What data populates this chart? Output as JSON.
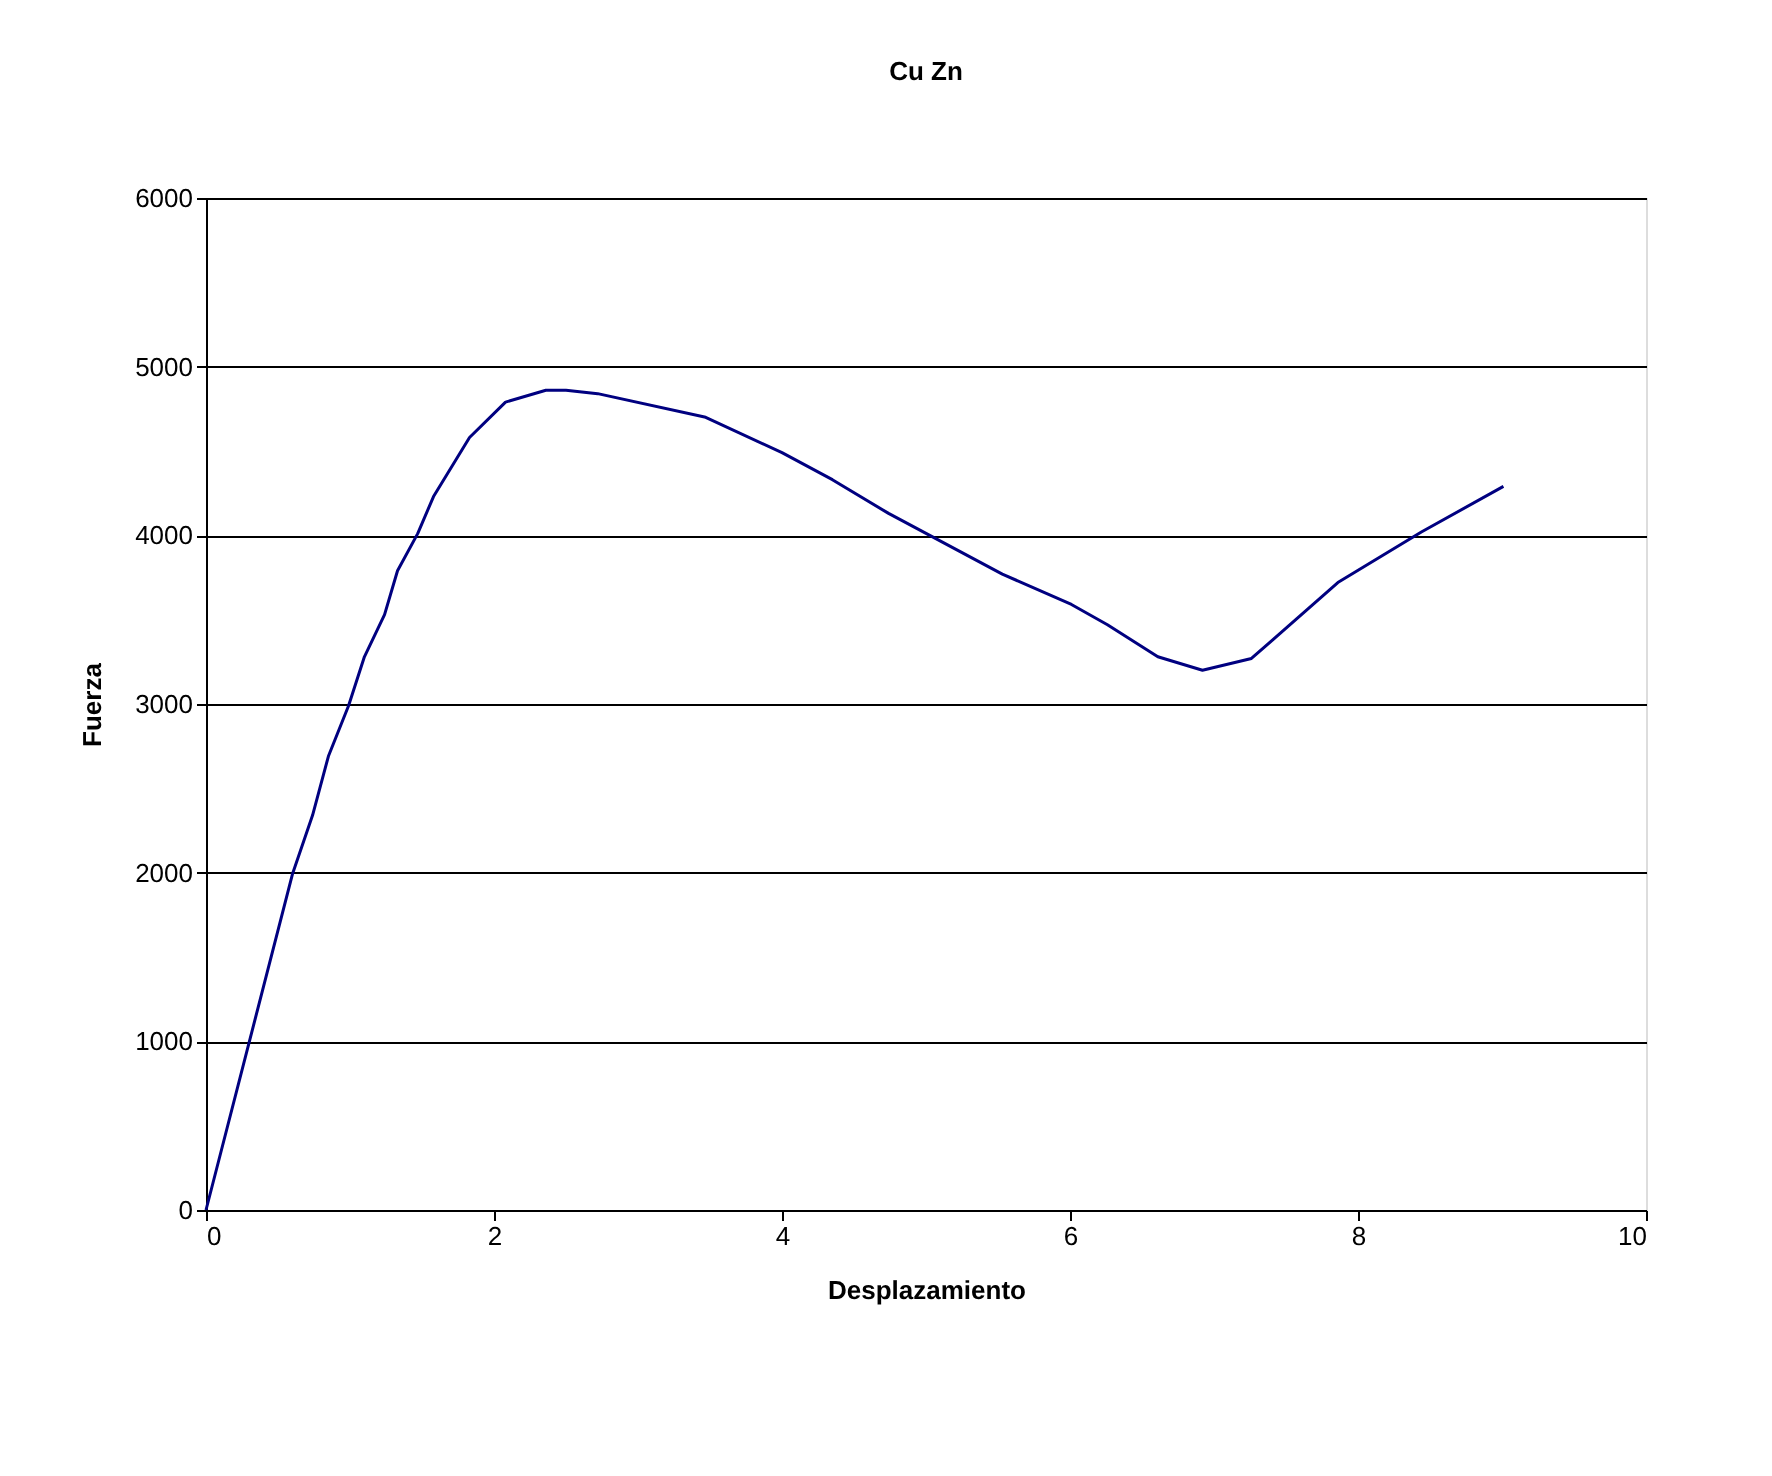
{
  "chart_data": {
    "type": "line",
    "title": "Cu Zn",
    "xlabel": "Desplazamiento",
    "ylabel": "Fuerza",
    "x": [
      0,
      0.6,
      0.74,
      0.85,
      0.99,
      1.1,
      1.24,
      1.33,
      1.47,
      1.58,
      1.83,
      2.08,
      2.36,
      2.5,
      2.72,
      3.47,
      4.0,
      4.35,
      4.74,
      5.53,
      6.01,
      6.26,
      6.61,
      6.92,
      7.26,
      7.86,
      8.44,
      9.01
    ],
    "series": [
      {
        "color": "#000080",
        "values": [
          0,
          1990,
          2340,
          2690,
          2990,
          3280,
          3530,
          3790,
          4010,
          4230,
          4580,
          4790,
          4860,
          4860,
          4840,
          4700,
          4490,
          4330,
          4130,
          3770,
          3590,
          3470,
          3280,
          3200,
          3270,
          3720,
          4020,
          4290
        ]
      }
    ],
    "xlim": [
      0,
      10
    ],
    "xticks": [
      0,
      2,
      4,
      6,
      8,
      10
    ],
    "ylim": [
      0,
      6000
    ],
    "yticks": [
      0,
      1000,
      2000,
      3000,
      4000,
      5000,
      6000
    ],
    "grid": "y",
    "marker": "none",
    "line_style": "solid"
  }
}
